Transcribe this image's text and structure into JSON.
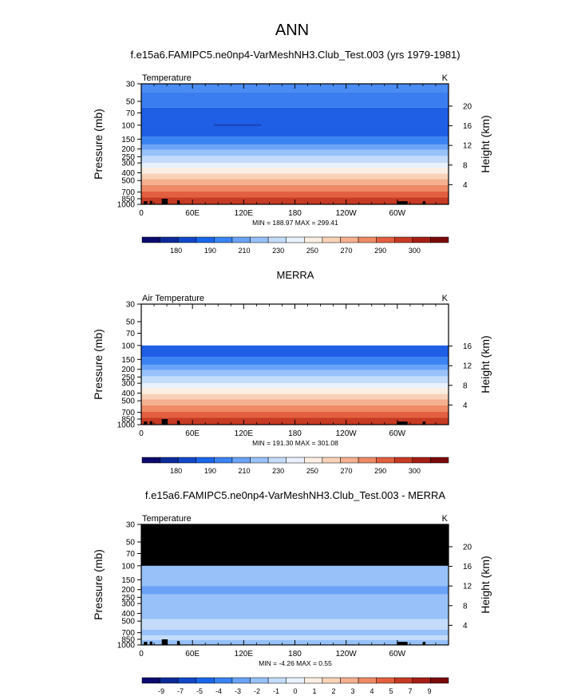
{
  "page": {
    "title": "ANN"
  },
  "colors": {
    "abs_palette": [
      "#0a0a6e",
      "#0d2a9a",
      "#1248c8",
      "#1a66ea",
      "#3b83f3",
      "#6aa3f6",
      "#97c1f8",
      "#c4dcfa",
      "#e8f1fc",
      "#fbeee2",
      "#f8d2b7",
      "#f4b08f",
      "#ee8a65",
      "#e2603f",
      "#c73a24",
      "#a51e14",
      "#7a0a0a"
    ],
    "diff_palette": [
      "#0a0a6e",
      "#0d2a9a",
      "#1248c8",
      "#1a66ea",
      "#3b83f3",
      "#6aa3f6",
      "#97c1f8",
      "#c4dcfa",
      "#e8f1fc",
      "#fbeee2",
      "#f8d2b7",
      "#f4b08f",
      "#ee8a65",
      "#e2603f",
      "#c73a24",
      "#a51e14",
      "#7a0a0a"
    ]
  },
  "panels": [
    {
      "heading": "f.e15a6.FAMIPC5.ne0np4-VarMeshNH3.Club_Test.003 (yrs 1979-1981)",
      "var_label": "Temperature",
      "units": "K",
      "ylabel": "Pressure (mb)",
      "y2label": "Height (km)",
      "minmax": "MIN = 188.97   MAX = 299.41",
      "bands": [
        {
          "p0": 30,
          "p1": 38,
          "c": "#4a8cf3"
        },
        {
          "p0": 38,
          "p1": 60,
          "c": "#3a7df0"
        },
        {
          "p0": 60,
          "p1": 140,
          "c": "#1f5fe6"
        },
        {
          "p0": 140,
          "p1": 175,
          "c": "#3b83f3"
        },
        {
          "p0": 175,
          "p1": 205,
          "c": "#6aa3f6"
        },
        {
          "p0": 205,
          "p1": 245,
          "c": "#97c1f8"
        },
        {
          "p0": 245,
          "p1": 300,
          "c": "#c4dcfa"
        },
        {
          "p0": 300,
          "p1": 345,
          "c": "#e8f1fc"
        },
        {
          "p0": 345,
          "p1": 410,
          "c": "#fbeee2"
        },
        {
          "p0": 410,
          "p1": 480,
          "c": "#f8d2b7"
        },
        {
          "p0": 480,
          "p1": 570,
          "c": "#f4b08f"
        },
        {
          "p0": 570,
          "p1": 690,
          "c": "#ee8a65"
        },
        {
          "p0": 690,
          "p1": 820,
          "c": "#e2603f"
        },
        {
          "p0": 820,
          "p1": 1000,
          "c": "#c73a24"
        }
      ],
      "streak": {
        "p": 100,
        "lon0": 85,
        "lon1": 140,
        "c": "#1a47b8"
      },
      "top_black": null,
      "colorbar": [
        "180",
        "190",
        "210",
        "230",
        "250",
        "270",
        "290",
        "300"
      ],
      "colorbar_kind": "abs",
      "height_ticks": [
        4,
        8,
        12,
        16,
        20
      ]
    },
    {
      "heading": "MERRA",
      "var_label": "Air Temperature",
      "units": "K",
      "ylabel": "Pressure (mb)",
      "y2label": "Height (km)",
      "minmax": "MIN = 191.30   MAX = 301.08",
      "bands": [
        {
          "p0": 100,
          "p1": 140,
          "c": "#1f5fe6"
        },
        {
          "p0": 140,
          "p1": 175,
          "c": "#3b83f3"
        },
        {
          "p0": 175,
          "p1": 205,
          "c": "#6aa3f6"
        },
        {
          "p0": 205,
          "p1": 245,
          "c": "#97c1f8"
        },
        {
          "p0": 245,
          "p1": 300,
          "c": "#c4dcfa"
        },
        {
          "p0": 300,
          "p1": 345,
          "c": "#e8f1fc"
        },
        {
          "p0": 345,
          "p1": 410,
          "c": "#fbeee2"
        },
        {
          "p0": 410,
          "p1": 480,
          "c": "#f8d2b7"
        },
        {
          "p0": 480,
          "p1": 570,
          "c": "#f4b08f"
        },
        {
          "p0": 570,
          "p1": 690,
          "c": "#ee8a65"
        },
        {
          "p0": 690,
          "p1": 820,
          "c": "#e2603f"
        },
        {
          "p0": 820,
          "p1": 1000,
          "c": "#c73a24"
        }
      ],
      "streak": null,
      "top_black": null,
      "colorbar": [
        "180",
        "190",
        "210",
        "230",
        "250",
        "270",
        "290",
        "300"
      ],
      "colorbar_kind": "abs",
      "height_ticks": [
        4,
        8,
        12,
        16
      ]
    },
    {
      "heading": "f.e15a6.FAMIPC5.ne0np4-VarMeshNH3.Club_Test.003 - MERRA",
      "var_label": "Temperature",
      "units": "K",
      "ylabel": "Pressure (mb)",
      "y2label": "Height (km)",
      "minmax": "MIN =  -4.26   MAX =   0.55",
      "bands": [
        {
          "p0": 100,
          "p1": 180,
          "c": "#97c1f8"
        },
        {
          "p0": 180,
          "p1": 230,
          "c": "#6aa3f6"
        },
        {
          "p0": 230,
          "p1": 470,
          "c": "#97c1f8"
        },
        {
          "p0": 470,
          "p1": 640,
          "c": "#c4dcfa"
        },
        {
          "p0": 640,
          "p1": 760,
          "c": "#97c1f8"
        },
        {
          "p0": 760,
          "p1": 870,
          "c": "#c4dcfa"
        },
        {
          "p0": 870,
          "p1": 1000,
          "c": "#97c1f8"
        }
      ],
      "streak": null,
      "top_black": {
        "p0": 30,
        "p1": 100
      },
      "colorbar": [
        "-9",
        "-7",
        "-5",
        "-4",
        "-3",
        "-2",
        "-1",
        "0",
        "1",
        "2",
        "3",
        "4",
        "5",
        "7",
        "9"
      ],
      "colorbar_kind": "diff",
      "height_ticks": [
        4,
        8,
        12,
        16,
        20
      ]
    }
  ],
  "chart_data": [
    {
      "type": "heatmap",
      "title": "f.e15a6.FAMIPC5.ne0np4-VarMeshNH3.Club_Test.003 (yrs 1979-1981)",
      "xlabel": "",
      "ylabel": "Pressure (mb)",
      "x_ticks": [
        "0",
        "60E",
        "120E",
        "180",
        "120W",
        "60W"
      ],
      "y_ticks": [
        30,
        50,
        70,
        100,
        150,
        200,
        250,
        300,
        400,
        500,
        700,
        850,
        1000
      ],
      "ylim": [
        1000,
        30
      ],
      "y_scale": "log",
      "colorbar_levels": [
        180,
        190,
        210,
        230,
        250,
        270,
        290,
        300
      ],
      "min": 188.97,
      "max": 299.41
    },
    {
      "type": "heatmap",
      "title": "MERRA",
      "xlabel": "",
      "ylabel": "Pressure (mb)",
      "x_ticks": [
        "0",
        "60E",
        "120E",
        "180",
        "120W",
        "60W"
      ],
      "y_ticks": [
        30,
        50,
        70,
        100,
        150,
        200,
        250,
        300,
        400,
        500,
        700,
        850,
        1000
      ],
      "ylim": [
        1000,
        30
      ],
      "y_scale": "log",
      "colorbar_levels": [
        180,
        190,
        210,
        230,
        250,
        270,
        290,
        300
      ],
      "min": 191.3,
      "max": 301.08
    },
    {
      "type": "heatmap",
      "title": "f.e15a6.FAMIPC5.ne0np4-VarMeshNH3.Club_Test.003 - MERRA",
      "xlabel": "",
      "ylabel": "Pressure (mb)",
      "x_ticks": [
        "0",
        "60E",
        "120E",
        "180",
        "120W",
        "60W"
      ],
      "y_ticks": [
        30,
        50,
        70,
        100,
        150,
        200,
        250,
        300,
        400,
        500,
        700,
        850,
        1000
      ],
      "ylim": [
        1000,
        30
      ],
      "y_scale": "log",
      "colorbar_levels": [
        -9,
        -7,
        -5,
        -4,
        -3,
        -2,
        -1,
        0,
        1,
        2,
        3,
        4,
        5,
        7,
        9
      ],
      "min": -4.26,
      "max": 0.55
    }
  ],
  "axes": {
    "x_ticks": [
      {
        "lon": 0,
        "label": "0"
      },
      {
        "lon": 60,
        "label": "60E"
      },
      {
        "lon": 120,
        "label": "120E"
      },
      {
        "lon": 180,
        "label": "180"
      },
      {
        "lon": 240,
        "label": "120W"
      },
      {
        "lon": 300,
        "label": "60W"
      }
    ],
    "p_ticks": [
      {
        "p": 30,
        "label": "30"
      },
      {
        "p": 50,
        "label": "50"
      },
      {
        "p": 70,
        "label": "70"
      },
      {
        "p": 100,
        "label": "100"
      },
      {
        "p": 150,
        "label": "150"
      },
      {
        "p": 200,
        "label": "200"
      },
      {
        "p": 250,
        "label": "250"
      },
      {
        "p": 300,
        "label": "300"
      },
      {
        "p": 400,
        "label": "400"
      },
      {
        "p": 500,
        "label": "500"
      },
      {
        "p": 700,
        "label": "700"
      },
      {
        "p": 850,
        "label": "850"
      },
      {
        "p": 1000,
        "label": "1000"
      }
    ]
  }
}
